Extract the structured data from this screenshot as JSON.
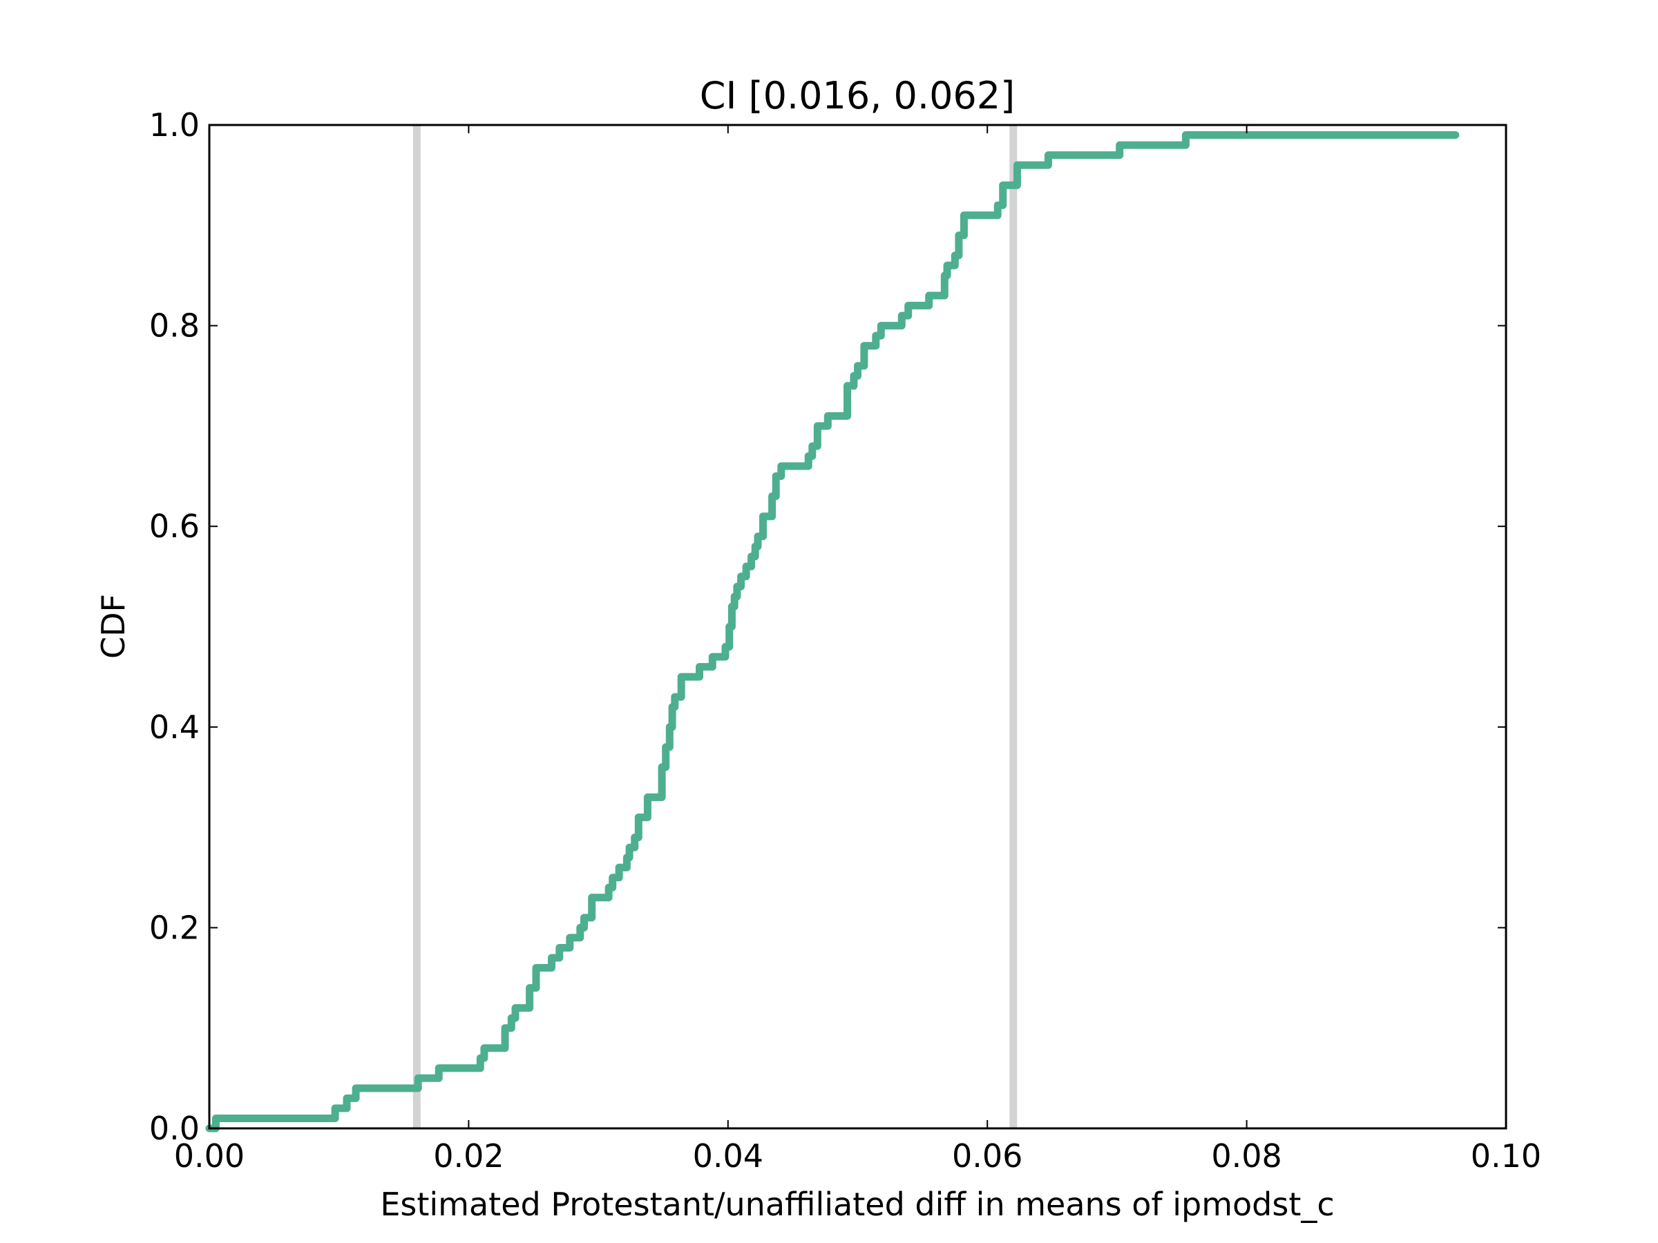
{
  "chart_data": {
    "type": "line",
    "title": "CI [0.016, 0.062]",
    "xlabel": "Estimated Protestant/unaffiliated diff in means of ipmodst_c",
    "ylabel": "CDF",
    "xlim": [
      0.0,
      0.1
    ],
    "ylim": [
      0.0,
      1.0
    ],
    "xticks": [
      0.0,
      0.02,
      0.04,
      0.06,
      0.08,
      0.1
    ],
    "xtick_labels": [
      "0.00",
      "0.02",
      "0.04",
      "0.06",
      "0.08",
      "0.10"
    ],
    "yticks": [
      0.0,
      0.2,
      0.4,
      0.6,
      0.8,
      1.0
    ],
    "ytick_labels": [
      "0.0",
      "0.2",
      "0.4",
      "0.6",
      "0.8",
      "1.0"
    ],
    "grid": false,
    "ci_lines": [
      0.016,
      0.062
    ],
    "series": [
      {
        "style": "step",
        "color": "#4daf8f",
        "x": [
          0.0,
          0.0005,
          0.0097,
          0.0106,
          0.0113,
          0.0157,
          0.0161,
          0.0177,
          0.0209,
          0.0212,
          0.0228,
          0.0233,
          0.0236,
          0.0243,
          0.0247,
          0.0252,
          0.0264,
          0.027,
          0.0278,
          0.0283,
          0.0286,
          0.0289,
          0.0295,
          0.0308,
          0.0311,
          0.0316,
          0.0322,
          0.0324,
          0.0328,
          0.0331,
          0.0338,
          0.0349,
          0.0352,
          0.0355,
          0.0357,
          0.0359,
          0.0364,
          0.0369,
          0.0378,
          0.0388,
          0.0398,
          0.0401,
          0.0403,
          0.0405,
          0.0407,
          0.041,
          0.0414,
          0.0418,
          0.0421,
          0.0423,
          0.0427,
          0.0434,
          0.0437,
          0.0441,
          0.0462,
          0.0465,
          0.0469,
          0.0477,
          0.0492,
          0.0497,
          0.05,
          0.0505,
          0.0514,
          0.0518,
          0.0534,
          0.0539,
          0.0555,
          0.0567,
          0.0569,
          0.0575,
          0.0578,
          0.0582,
          0.0608,
          0.0612,
          0.0623,
          0.0647,
          0.0702,
          0.0753,
          0.0961
        ],
        "y": [
          0.0,
          0.01,
          0.02,
          0.03,
          0.04,
          0.04,
          0.05,
          0.06,
          0.07,
          0.08,
          0.1,
          0.11,
          0.12,
          0.12,
          0.14,
          0.16,
          0.17,
          0.18,
          0.19,
          0.19,
          0.2,
          0.21,
          0.23,
          0.24,
          0.25,
          0.26,
          0.27,
          0.28,
          0.29,
          0.31,
          0.33,
          0.36,
          0.38,
          0.4,
          0.42,
          0.43,
          0.45,
          0.45,
          0.46,
          0.47,
          0.48,
          0.5,
          0.52,
          0.53,
          0.54,
          0.55,
          0.56,
          0.57,
          0.58,
          0.59,
          0.61,
          0.63,
          0.65,
          0.66,
          0.67,
          0.68,
          0.7,
          0.71,
          0.74,
          0.75,
          0.76,
          0.78,
          0.79,
          0.8,
          0.81,
          0.82,
          0.83,
          0.85,
          0.86,
          0.87,
          0.89,
          0.91,
          0.92,
          0.94,
          0.96,
          0.97,
          0.98,
          0.99,
          0.99
        ]
      }
    ]
  }
}
